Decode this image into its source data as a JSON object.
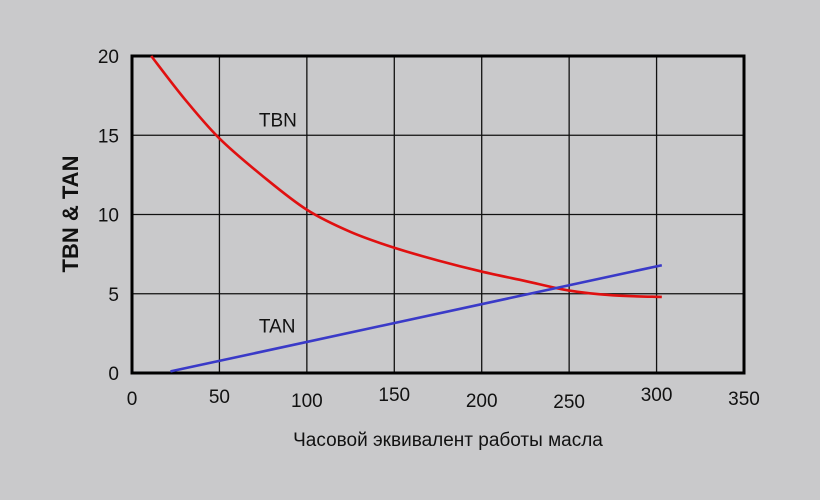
{
  "chart_data": {
    "type": "line",
    "title": "",
    "xlabel": "Часовой эквивалент работы масла",
    "ylabel": "TBN & TAN",
    "xlim": [
      0,
      350
    ],
    "ylim": [
      0,
      20
    ],
    "x_ticks": [
      0,
      50,
      100,
      150,
      200,
      250,
      300,
      350
    ],
    "y_ticks": [
      0,
      5,
      10,
      15,
      20
    ],
    "grid": true,
    "legend": null,
    "series": [
      {
        "name": "TBN",
        "color": "#e01010",
        "x": [
          11,
          30,
          50,
          75,
          100,
          125,
          150,
          175,
          200,
          225,
          250,
          275,
          303
        ],
        "values": [
          20,
          17.3,
          14.8,
          12.4,
          10.3,
          8.9,
          7.9,
          7.1,
          6.4,
          5.8,
          5.2,
          4.9,
          4.8
        ]
      },
      {
        "name": "TAN",
        "color": "#3a3ac8",
        "x": [
          22,
          303
        ],
        "values": [
          0.1,
          6.8
        ]
      }
    ],
    "annotations": [
      {
        "text": "TBN",
        "x": 80,
        "y": 16.0
      },
      {
        "text": "TAN",
        "x": 80,
        "y": 3.0
      }
    ]
  }
}
